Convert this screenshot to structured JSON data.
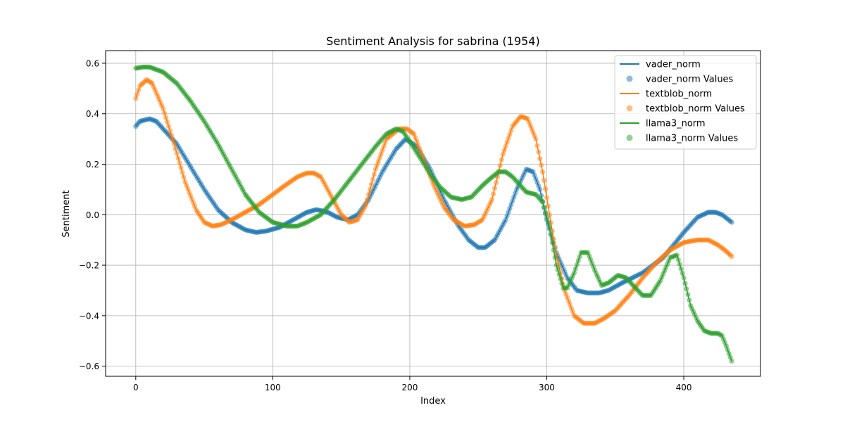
{
  "chart_data": {
    "type": "line",
    "title": "Sentiment Analysis for sabrina (1954)",
    "xlabel": "Index",
    "ylabel": "Sentiment",
    "xlim": [
      -22,
      456
    ],
    "ylim": [
      -0.64,
      0.65
    ],
    "x_ticks": [
      0,
      100,
      200,
      300,
      400
    ],
    "x_tick_labels": [
      "0",
      "100",
      "200",
      "300",
      "400"
    ],
    "y_ticks": [
      -0.6,
      -0.4,
      -0.2,
      0.0,
      0.2,
      0.4,
      0.6
    ],
    "y_tick_labels": [
      "−0.6",
      "−0.4",
      "−0.2",
      "0.0",
      "0.2",
      "0.4",
      "0.6"
    ],
    "grid": true,
    "legend_position": "top-right",
    "x_range": [
      0,
      435
    ],
    "series": [
      {
        "name": "vader_norm",
        "scatter_name": "vader_norm Values",
        "color": "#1f77b4",
        "points": [
          [
            0,
            0.35
          ],
          [
            3,
            0.37
          ],
          [
            10,
            0.38
          ],
          [
            15,
            0.37
          ],
          [
            20,
            0.34
          ],
          [
            30,
            0.28
          ],
          [
            40,
            0.19
          ],
          [
            50,
            0.1
          ],
          [
            60,
            0.02
          ],
          [
            70,
            -0.03
          ],
          [
            80,
            -0.06
          ],
          [
            88,
            -0.07
          ],
          [
            95,
            -0.065
          ],
          [
            105,
            -0.05
          ],
          [
            115,
            -0.02
          ],
          [
            125,
            0.01
          ],
          [
            132,
            0.02
          ],
          [
            140,
            0.01
          ],
          [
            147,
            -0.01
          ],
          [
            155,
            -0.02
          ],
          [
            162,
            0.0
          ],
          [
            170,
            0.06
          ],
          [
            180,
            0.17
          ],
          [
            190,
            0.26
          ],
          [
            197,
            0.3
          ],
          [
            205,
            0.27
          ],
          [
            215,
            0.18
          ],
          [
            225,
            0.06
          ],
          [
            235,
            -0.04
          ],
          [
            243,
            -0.1
          ],
          [
            250,
            -0.13
          ],
          [
            255,
            -0.13
          ],
          [
            262,
            -0.1
          ],
          [
            270,
            -0.02
          ],
          [
            278,
            0.1
          ],
          [
            285,
            0.18
          ],
          [
            290,
            0.17
          ],
          [
            295,
            0.1
          ],
          [
            300,
            -0.02
          ],
          [
            307,
            -0.15
          ],
          [
            315,
            -0.25
          ],
          [
            322,
            -0.3
          ],
          [
            330,
            -0.31
          ],
          [
            338,
            -0.31
          ],
          [
            345,
            -0.3
          ],
          [
            355,
            -0.27
          ],
          [
            370,
            -0.23
          ],
          [
            385,
            -0.17
          ],
          [
            400,
            -0.07
          ],
          [
            410,
            -0.01
          ],
          [
            418,
            0.01
          ],
          [
            423,
            0.01
          ],
          [
            428,
            0.0
          ],
          [
            435,
            -0.03
          ]
        ]
      },
      {
        "name": "textblob_norm",
        "scatter_name": "textblob_norm Values",
        "color": "#ff7f0e",
        "points": [
          [
            0,
            0.46
          ],
          [
            3,
            0.51
          ],
          [
            8,
            0.535
          ],
          [
            12,
            0.52
          ],
          [
            20,
            0.42
          ],
          [
            28,
            0.28
          ],
          [
            36,
            0.13
          ],
          [
            44,
            0.02
          ],
          [
            50,
            -0.03
          ],
          [
            56,
            -0.045
          ],
          [
            62,
            -0.04
          ],
          [
            70,
            -0.02
          ],
          [
            80,
            0.01
          ],
          [
            90,
            0.04
          ],
          [
            100,
            0.08
          ],
          [
            110,
            0.12
          ],
          [
            118,
            0.15
          ],
          [
            125,
            0.165
          ],
          [
            130,
            0.165
          ],
          [
            135,
            0.15
          ],
          [
            142,
            0.08
          ],
          [
            150,
            0.0
          ],
          [
            156,
            -0.03
          ],
          [
            162,
            -0.02
          ],
          [
            168,
            0.04
          ],
          [
            175,
            0.18
          ],
          [
            183,
            0.3
          ],
          [
            192,
            0.34
          ],
          [
            198,
            0.34
          ],
          [
            203,
            0.32
          ],
          [
            210,
            0.22
          ],
          [
            218,
            0.11
          ],
          [
            225,
            0.03
          ],
          [
            232,
            -0.02
          ],
          [
            240,
            -0.045
          ],
          [
            247,
            -0.04
          ],
          [
            253,
            -0.02
          ],
          [
            260,
            0.06
          ],
          [
            268,
            0.24
          ],
          [
            275,
            0.35
          ],
          [
            281,
            0.39
          ],
          [
            286,
            0.38
          ],
          [
            292,
            0.3
          ],
          [
            297,
            0.17
          ],
          [
            302,
            0.0
          ],
          [
            307,
            -0.16
          ],
          [
            313,
            -0.3
          ],
          [
            320,
            -0.4
          ],
          [
            327,
            -0.43
          ],
          [
            335,
            -0.43
          ],
          [
            342,
            -0.41
          ],
          [
            350,
            -0.38
          ],
          [
            360,
            -0.32
          ],
          [
            370,
            -0.25
          ],
          [
            380,
            -0.19
          ],
          [
            390,
            -0.14
          ],
          [
            400,
            -0.11
          ],
          [
            410,
            -0.1
          ],
          [
            418,
            -0.1
          ],
          [
            425,
            -0.12
          ],
          [
            430,
            -0.14
          ],
          [
            435,
            -0.165
          ]
        ]
      },
      {
        "name": "llama3_norm",
        "scatter_name": "llama3_norm Values",
        "color": "#2ca02c",
        "points": [
          [
            0,
            0.58
          ],
          [
            5,
            0.585
          ],
          [
            10,
            0.585
          ],
          [
            20,
            0.565
          ],
          [
            30,
            0.52
          ],
          [
            40,
            0.45
          ],
          [
            50,
            0.37
          ],
          [
            60,
            0.28
          ],
          [
            70,
            0.18
          ],
          [
            80,
            0.08
          ],
          [
            90,
            0.01
          ],
          [
            100,
            -0.03
          ],
          [
            110,
            -0.045
          ],
          [
            118,
            -0.045
          ],
          [
            125,
            -0.03
          ],
          [
            135,
            0.0
          ],
          [
            145,
            0.06
          ],
          [
            155,
            0.13
          ],
          [
            165,
            0.2
          ],
          [
            175,
            0.27
          ],
          [
            183,
            0.32
          ],
          [
            190,
            0.34
          ],
          [
            195,
            0.33
          ],
          [
            200,
            0.29
          ],
          [
            207,
            0.23
          ],
          [
            215,
            0.16
          ],
          [
            222,
            0.11
          ],
          [
            230,
            0.07
          ],
          [
            238,
            0.06
          ],
          [
            245,
            0.07
          ],
          [
            252,
            0.11
          ],
          [
            258,
            0.14
          ],
          [
            265,
            0.17
          ],
          [
            270,
            0.17
          ],
          [
            275,
            0.15
          ],
          [
            280,
            0.12
          ],
          [
            285,
            0.09
          ],
          [
            292,
            0.08
          ],
          [
            297,
            0.05
          ],
          [
            302,
            -0.05
          ],
          [
            307,
            -0.2
          ],
          [
            312,
            -0.29
          ],
          [
            315,
            -0.29
          ],
          [
            320,
            -0.23
          ],
          [
            325,
            -0.15
          ],
          [
            330,
            -0.15
          ],
          [
            335,
            -0.22
          ],
          [
            340,
            -0.28
          ],
          [
            345,
            -0.27
          ],
          [
            352,
            -0.24
          ],
          [
            358,
            -0.25
          ],
          [
            363,
            -0.28
          ],
          [
            370,
            -0.32
          ],
          [
            376,
            -0.32
          ],
          [
            383,
            -0.26
          ],
          [
            390,
            -0.17
          ],
          [
            395,
            -0.16
          ],
          [
            400,
            -0.25
          ],
          [
            405,
            -0.36
          ],
          [
            410,
            -0.42
          ],
          [
            415,
            -0.46
          ],
          [
            420,
            -0.47
          ],
          [
            425,
            -0.47
          ],
          [
            428,
            -0.48
          ],
          [
            431,
            -0.52
          ],
          [
            435,
            -0.58
          ]
        ]
      }
    ]
  }
}
